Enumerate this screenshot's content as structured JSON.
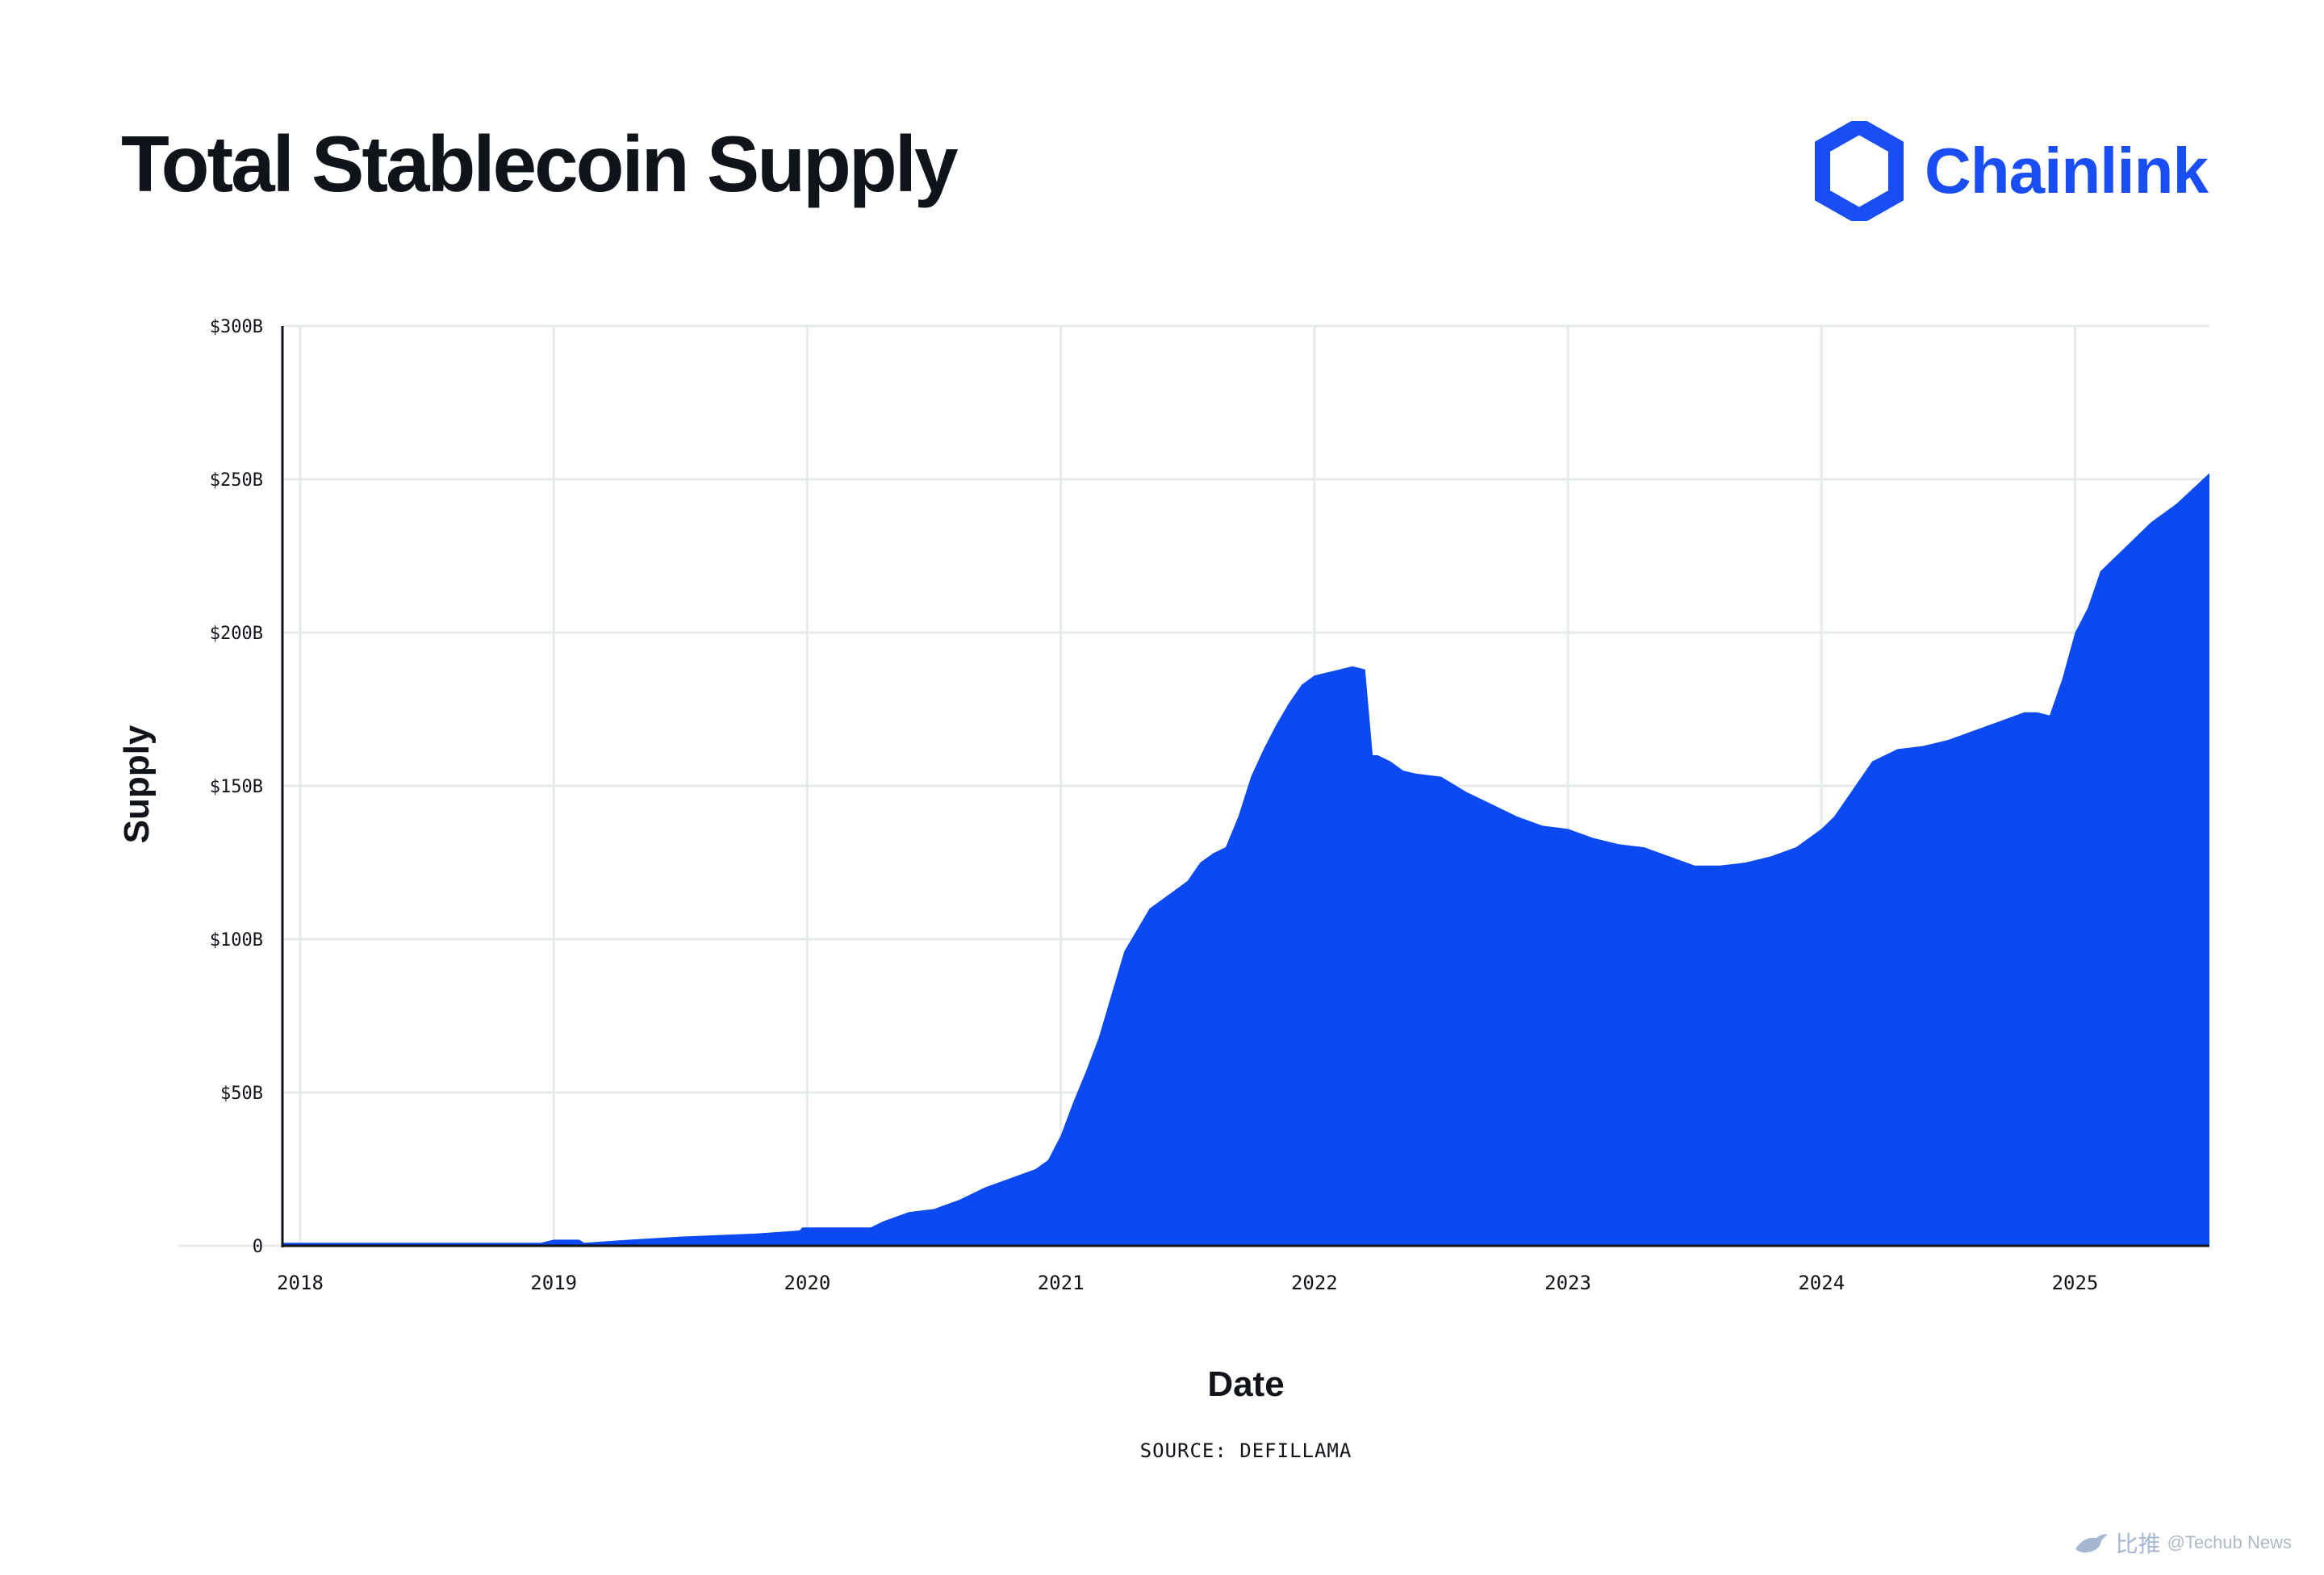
{
  "header": {
    "title": "Total Stablecoin Supply",
    "brand": "Chainlink"
  },
  "source_note": "SOURCE: DEFILLAMA",
  "watermark": {
    "glyph": "比推",
    "label": "@Techub News"
  },
  "colors": {
    "fill": "#0b4af3",
    "brand": "#1a4ef5",
    "grid": "#e5ebec",
    "axis": "#11131a"
  },
  "icons": {
    "brand_logo": "chainlink-hexagon-icon",
    "watermark_logo": "bird-icon"
  },
  "chart_data": {
    "type": "area",
    "title": "Total Stablecoin Supply",
    "xlabel": "Date",
    "ylabel": "Supply",
    "x_type": "date",
    "xlim": [
      2017.93,
      2025.53
    ],
    "ylim": [
      0,
      300
    ],
    "y_unit": "B USD",
    "x_ticks": [
      {
        "value": 2018,
        "label": "2018"
      },
      {
        "value": 2019,
        "label": "2019"
      },
      {
        "value": 2020,
        "label": "2020"
      },
      {
        "value": 2021,
        "label": "2021"
      },
      {
        "value": 2022,
        "label": "2022"
      },
      {
        "value": 2023,
        "label": "2023"
      },
      {
        "value": 2024,
        "label": "2024"
      },
      {
        "value": 2025,
        "label": "2025"
      }
    ],
    "y_ticks": [
      {
        "value": 0,
        "label": "0"
      },
      {
        "value": 50,
        "label": "$50B"
      },
      {
        "value": 100,
        "label": "$100B"
      },
      {
        "value": 150,
        "label": "$150B"
      },
      {
        "value": 200,
        "label": "$200B"
      },
      {
        "value": 250,
        "label": "$250B"
      },
      {
        "value": 300,
        "label": "$300B"
      }
    ],
    "grid": true,
    "legend": "none",
    "series": [
      {
        "x": [
          2017.93,
          2018.5,
          2018.95,
          2019.0,
          2019.1,
          2019.12,
          2019.3,
          2019.5,
          2019.8,
          2019.97,
          2019.98,
          2020.1,
          2020.25,
          2020.3,
          2020.4,
          2020.5,
          2020.6,
          2020.7,
          2020.8,
          2020.9,
          2020.95,
          2021.0,
          2021.05,
          2021.1,
          2021.15,
          2021.2,
          2021.25,
          2021.3,
          2021.35,
          2021.4,
          2021.45,
          2021.5,
          2021.55,
          2021.6,
          2021.65,
          2021.7,
          2021.75,
          2021.8,
          2021.85,
          2021.9,
          2021.95,
          2022.0,
          2022.05,
          2022.1,
          2022.15,
          2022.2,
          2022.23,
          2022.25,
          2022.3,
          2022.35,
          2022.4,
          2022.5,
          2022.6,
          2022.7,
          2022.8,
          2022.9,
          2023.0,
          2023.1,
          2023.2,
          2023.3,
          2023.4,
          2023.5,
          2023.55,
          2023.6,
          2023.7,
          2023.8,
          2023.9,
          2024.0,
          2024.05,
          2024.1,
          2024.15,
          2024.2,
          2024.3,
          2024.4,
          2024.5,
          2024.6,
          2024.7,
          2024.8,
          2024.85,
          2024.9,
          2024.95,
          2025.0,
          2025.05,
          2025.1,
          2025.2,
          2025.3,
          2025.4,
          2025.53
        ],
        "values": [
          1,
          1,
          1,
          2,
          2,
          1,
          2,
          3,
          4,
          5,
          6,
          6,
          6,
          8,
          11,
          12,
          15,
          19,
          22,
          25,
          28,
          36,
          47,
          57,
          68,
          82,
          96,
          103,
          110,
          113,
          116,
          119,
          125,
          128,
          130,
          140,
          153,
          162,
          170,
          177,
          183,
          186,
          187,
          188,
          189,
          188,
          160,
          160,
          158,
          155,
          154,
          153,
          148,
          144,
          140,
          137,
          136,
          133,
          131,
          130,
          127,
          124,
          124,
          124,
          125,
          127,
          130,
          136,
          140,
          146,
          152,
          158,
          162,
          163,
          165,
          168,
          171,
          174,
          174,
          173,
          185,
          200,
          208,
          220,
          228,
          236,
          242,
          252
        ]
      }
    ]
  }
}
